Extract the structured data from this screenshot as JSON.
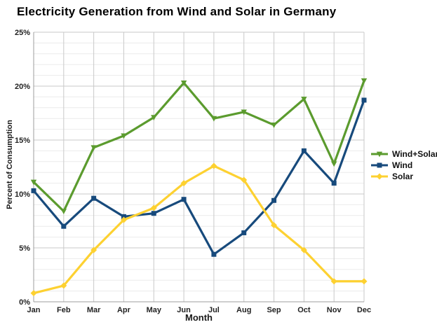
{
  "title": "Electricity Generation from Wind and Solar in Germany",
  "chart_data": {
    "type": "line",
    "x": [
      "Jan",
      "Feb",
      "Mar",
      "Apr",
      "May",
      "Jun",
      "Jul",
      "Aug",
      "Sep",
      "Oct",
      "Nov",
      "Dec"
    ],
    "xlabel": "Month",
    "ylabel": "Percent of Consumption",
    "ylim": [
      0,
      25
    ],
    "ytick_major_interval": 5,
    "ytick_minor_interval": 1,
    "ytick_labels": [
      "0%",
      "5%",
      "10%",
      "15%",
      "20%",
      "25%"
    ],
    "grid": "on",
    "legend_position": "right",
    "series": [
      {
        "name": "Wind+Solar",
        "marker": "triangle",
        "color": "#5b9b2e",
        "values": [
          11.1,
          8.4,
          14.3,
          15.4,
          17.1,
          20.3,
          17.0,
          17.6,
          16.4,
          18.8,
          12.8,
          20.5
        ]
      },
      {
        "name": "Wind",
        "marker": "square",
        "color": "#174a7c",
        "values": [
          10.3,
          7.0,
          9.6,
          7.9,
          8.2,
          9.5,
          4.4,
          6.4,
          9.4,
          14.0,
          11.0,
          18.7
        ]
      },
      {
        "name": "Solar",
        "marker": "diamond",
        "color": "#fdd131",
        "values": [
          0.8,
          1.5,
          4.8,
          7.6,
          8.7,
          11.0,
          12.6,
          11.3,
          7.1,
          4.8,
          1.9,
          1.9
        ]
      }
    ]
  },
  "styles": {
    "grid_major": "#c9c9c9",
    "grid_minor": "#ececec",
    "axis_line": "#9c9c9c",
    "tick_text": "#222222"
  }
}
